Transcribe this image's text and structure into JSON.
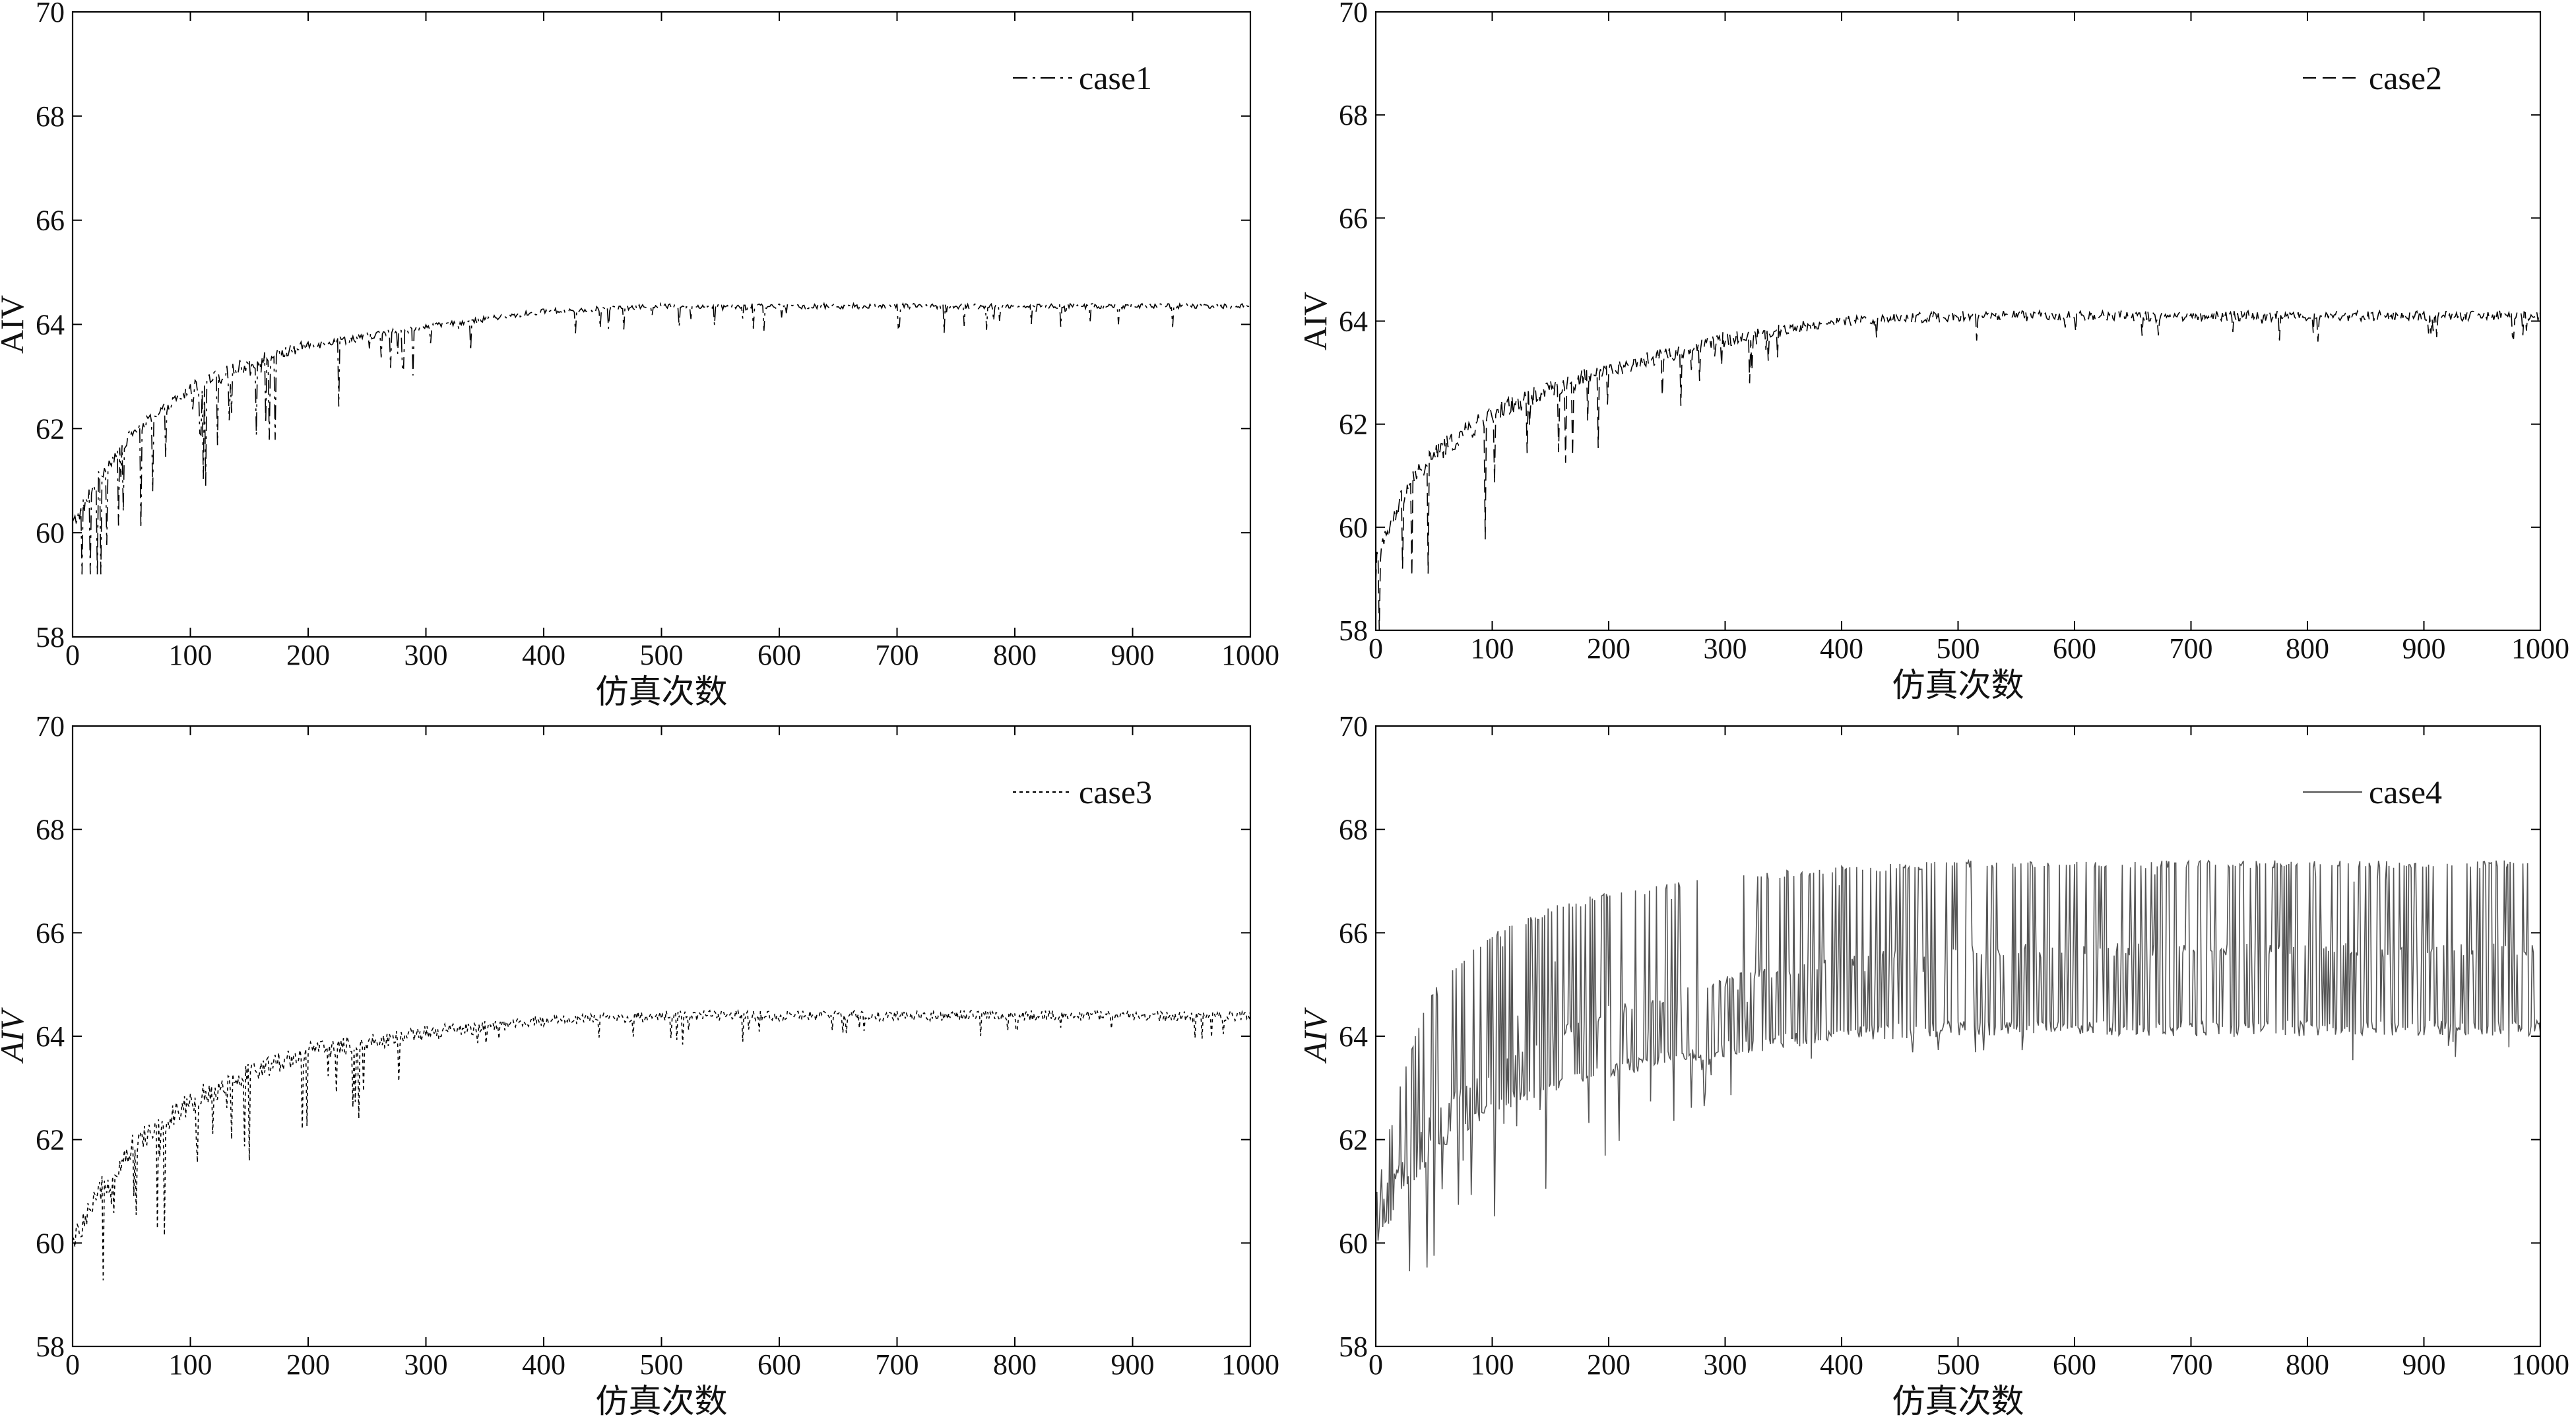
{
  "chart_data": [
    {
      "type": "line",
      "panel": "top-left",
      "xlabel": "仿真次数",
      "ylabel": "AIV",
      "ylabel_italic": false,
      "xlim": [
        0,
        1000
      ],
      "ylim": [
        58,
        70
      ],
      "xticks": [
        0,
        100,
        200,
        300,
        400,
        500,
        600,
        700,
        800,
        900,
        1000
      ],
      "yticks": [
        58,
        60,
        62,
        64,
        66,
        68,
        70
      ],
      "legend_position": "top-right",
      "series": [
        {
          "name": "case1",
          "line_style": "dash-dot",
          "color": "#000000",
          "x": [
            0,
            25,
            50,
            100,
            150,
            200,
            300,
            400,
            500,
            600,
            700,
            800,
            900,
            1000
          ],
          "values": [
            60.0,
            61.0,
            61.8,
            62.6,
            63.1,
            63.5,
            63.9,
            64.2,
            64.3,
            64.3,
            64.3,
            64.3,
            64.3,
            64.3
          ],
          "upper_envelope": [
            60.3,
            61.3,
            62.0,
            62.9,
            63.4,
            63.7,
            64.0,
            64.3,
            64.4,
            64.4,
            64.4,
            64.4,
            64.4,
            64.4
          ],
          "minimum": 59.2
        }
      ]
    },
    {
      "type": "line",
      "panel": "top-right",
      "xlabel": "仿真次数",
      "ylabel": "AIV",
      "ylabel_italic": false,
      "xlim": [
        0,
        1000
      ],
      "ylim": [
        58,
        70
      ],
      "xticks": [
        0,
        100,
        200,
        300,
        400,
        500,
        600,
        700,
        800,
        900,
        1000
      ],
      "yticks": [
        58,
        60,
        62,
        64,
        66,
        68,
        70
      ],
      "legend_position": "top-right",
      "series": [
        {
          "name": "case2",
          "line_style": "dashed",
          "color": "#000000",
          "x": [
            0,
            25,
            50,
            100,
            150,
            200,
            300,
            400,
            500,
            600,
            700,
            800,
            900,
            1000
          ],
          "values": [
            59.0,
            60.5,
            61.2,
            62.0,
            62.5,
            62.9,
            63.5,
            63.9,
            64.0,
            64.0,
            64.0,
            64.0,
            64.0,
            64.0
          ],
          "upper_envelope": [
            59.5,
            60.9,
            61.6,
            62.4,
            62.9,
            63.2,
            63.8,
            64.1,
            64.2,
            64.2,
            64.2,
            64.2,
            64.2,
            64.2
          ],
          "minimum": 58.0
        }
      ]
    },
    {
      "type": "line",
      "panel": "bottom-left",
      "xlabel": "仿真次数",
      "ylabel": "AIV",
      "ylabel_italic": true,
      "xlim": [
        0,
        1000
      ],
      "ylim": [
        58,
        70
      ],
      "xticks": [
        0,
        100,
        200,
        300,
        400,
        500,
        600,
        700,
        800,
        900,
        1000
      ],
      "yticks": [
        58,
        60,
        62,
        64,
        66,
        68,
        70
      ],
      "legend_position": "top-right",
      "series": [
        {
          "name": "case3",
          "line_style": "dotted",
          "color": "#000000",
          "x": [
            0,
            25,
            50,
            100,
            150,
            200,
            300,
            400,
            500,
            600,
            700,
            800,
            900,
            1000
          ],
          "values": [
            59.8,
            60.8,
            61.6,
            62.5,
            63.1,
            63.5,
            63.9,
            64.2,
            64.3,
            64.3,
            64.3,
            64.3,
            64.3,
            64.3
          ],
          "upper_envelope": [
            60.2,
            61.3,
            62.1,
            63.0,
            63.5,
            63.9,
            64.2,
            64.4,
            64.5,
            64.5,
            64.5,
            64.5,
            64.5,
            64.5
          ],
          "minimum": 58.7
        }
      ]
    },
    {
      "type": "line",
      "panel": "bottom-right",
      "xlabel": "仿真次数",
      "ylabel": "AIV",
      "ylabel_italic": true,
      "xlim": [
        0,
        1000
      ],
      "ylim": [
        58,
        70
      ],
      "xticks": [
        0,
        100,
        200,
        300,
        400,
        500,
        600,
        700,
        800,
        900,
        1000
      ],
      "yticks": [
        58,
        60,
        62,
        64,
        66,
        68,
        70
      ],
      "legend_position": "top-right",
      "series": [
        {
          "name": "case4",
          "line_style": "solid",
          "color": "#555555",
          "x": [
            0,
            25,
            50,
            100,
            150,
            200,
            300,
            400,
            500,
            600,
            700,
            800,
            900,
            1000
          ],
          "values": [
            60.2,
            61.2,
            62.0,
            62.8,
            63.2,
            63.5,
            63.9,
            64.2,
            64.3,
            64.3,
            64.3,
            64.3,
            64.3,
            64.3
          ],
          "upper_envelope": [
            61.0,
            63.5,
            65.0,
            66.0,
            66.5,
            66.8,
            67.1,
            67.3,
            67.4,
            67.4,
            67.4,
            67.4,
            67.4,
            67.4
          ],
          "mid_envelope": [
            60.8,
            61.8,
            62.6,
            63.5,
            64.1,
            64.6,
            65.2,
            65.6,
            65.8,
            65.8,
            65.8,
            65.8,
            65.8,
            65.8
          ],
          "minimum": 59.2
        }
      ]
    }
  ]
}
